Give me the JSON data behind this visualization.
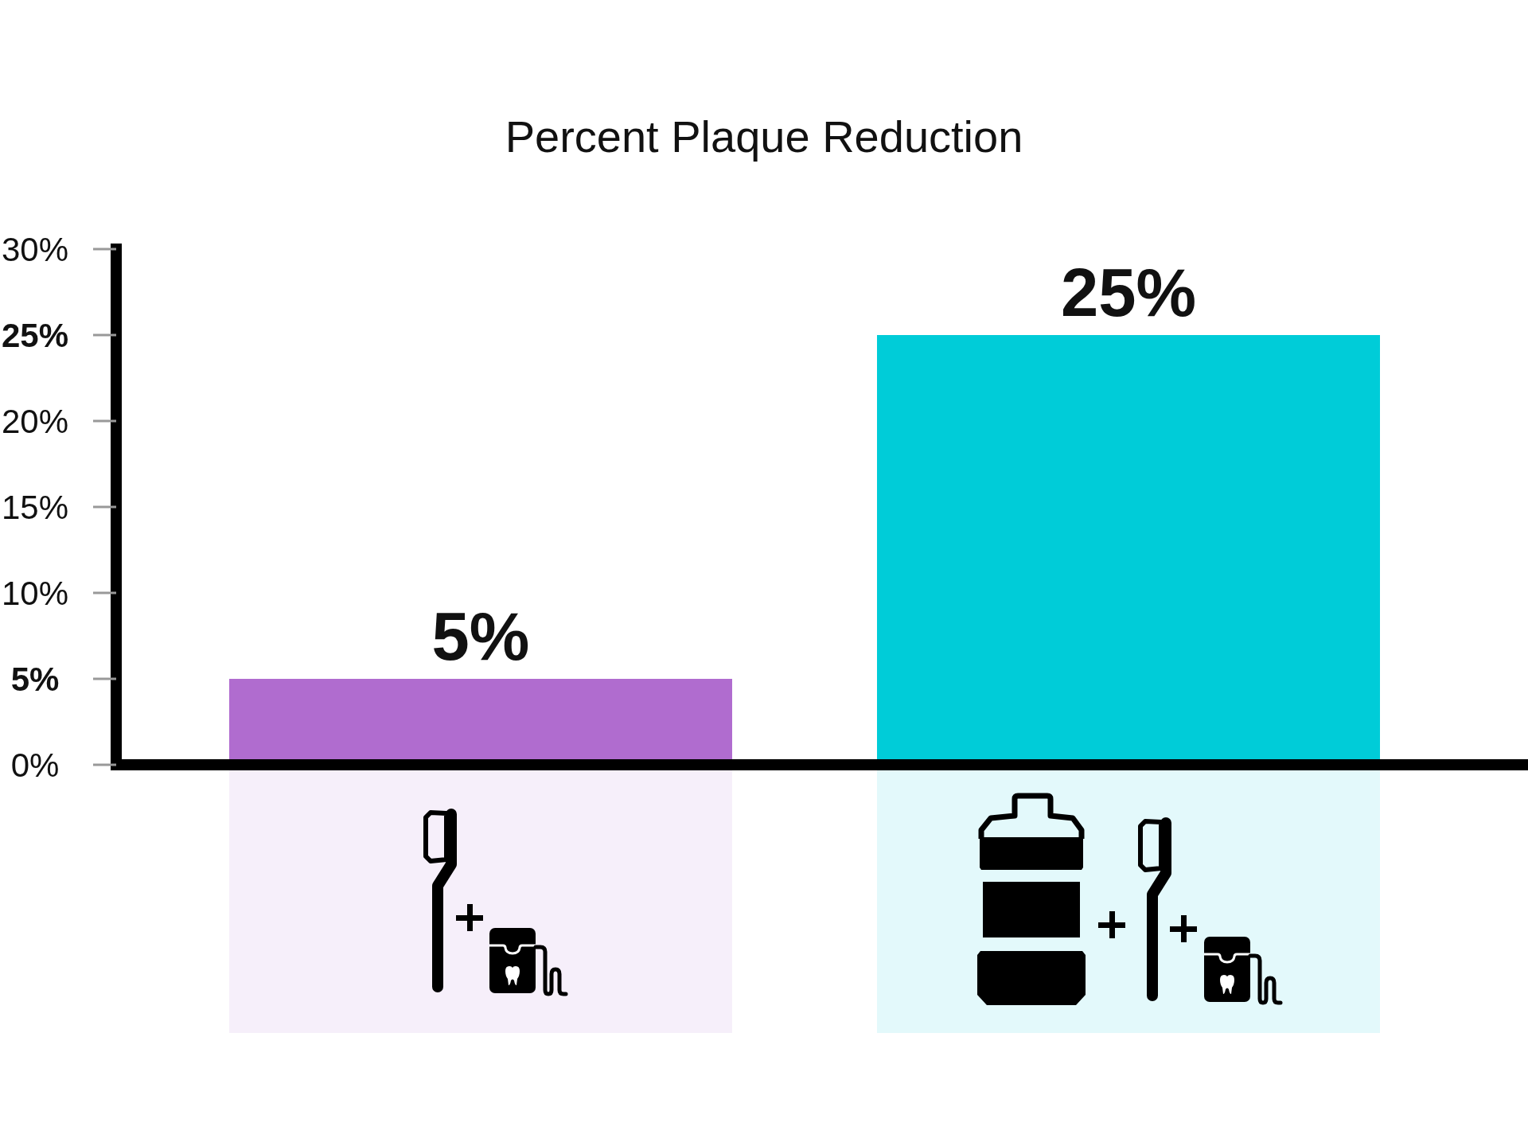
{
  "chart_data": {
    "type": "bar",
    "title": "Percent Plaque Reduction",
    "categories": [
      null,
      null
    ],
    "values": [
      5,
      25
    ],
    "colors": [
      "#b06ccf",
      "#00ccd8"
    ],
    "value_labels": [
      "5%",
      "25%"
    ],
    "ylim": [
      0,
      30
    ],
    "yticks": [
      {
        "value": 0,
        "label": "0%"
      },
      {
        "value": 5,
        "label": "5%"
      },
      {
        "value": 10,
        "label": "10%"
      },
      {
        "value": 15,
        "label": "15%"
      },
      {
        "value": 20,
        "label": "20%"
      },
      {
        "value": 25,
        "label": "25%"
      },
      {
        "value": 30,
        "label": "30%"
      }
    ],
    "tick_labels": "y"
  }
}
